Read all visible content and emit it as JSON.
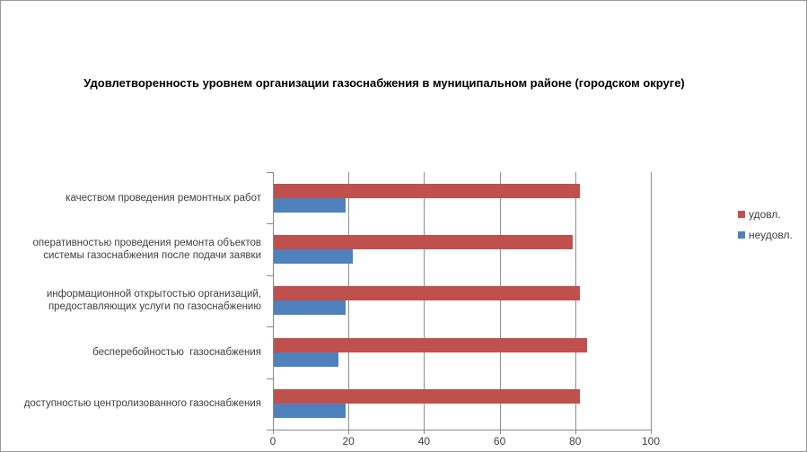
{
  "chart_data": {
    "type": "bar",
    "orientation": "horizontal",
    "title": "Удовлетворенность уровнем организации газоснабжения в муниципальном районе (городском округе)",
    "categories": [
      "качеством проведения ремонтных работ",
      "оперативностью проведения ремонта объектов системы газоснабжения после подачи заявки",
      "информационной открытостью организаций, предоставляющих услуги по газоснабжению",
      "бесперебойностью  газоснабжения",
      "доступностью центролизованного газоснабжения"
    ],
    "category_label_lines": [
      [
        "качеством проведения ремонтных работ"
      ],
      [
        "оперативностью проведения ремонта объектов",
        "системы газоснабжения после подачи заявки"
      ],
      [
        "информационной открытостью организаций,",
        "предоставляющих услуги по газоснабжению"
      ],
      [
        "бесперебойностью  газоснабжения"
      ],
      [
        "доступностью центролизованного газоснабжения"
      ]
    ],
    "series": [
      {
        "name": "удовл.",
        "color": "#c0504d",
        "values": [
          81,
          79,
          81,
          83,
          81
        ]
      },
      {
        "name": "неудовл.",
        "color": "#4f81bd",
        "values": [
          19,
          21,
          19,
          17,
          19
        ]
      }
    ],
    "x_axis": {
      "min": 0,
      "max": 100,
      "ticks": [
        0,
        20,
        40,
        60,
        80,
        100
      ],
      "tick_labels": [
        "0",
        "20",
        "40",
        "60",
        "80",
        "100"
      ]
    },
    "legend": {
      "position": "right",
      "entries": [
        "удовл.",
        "неудовл."
      ]
    },
    "gridlines": true,
    "colors": {
      "axis": "#8a8a8a",
      "gridline": "#8f8f8f",
      "text": "#404040",
      "title": "#000000",
      "frame_border": "#999999",
      "background": "#ffffff"
    }
  }
}
